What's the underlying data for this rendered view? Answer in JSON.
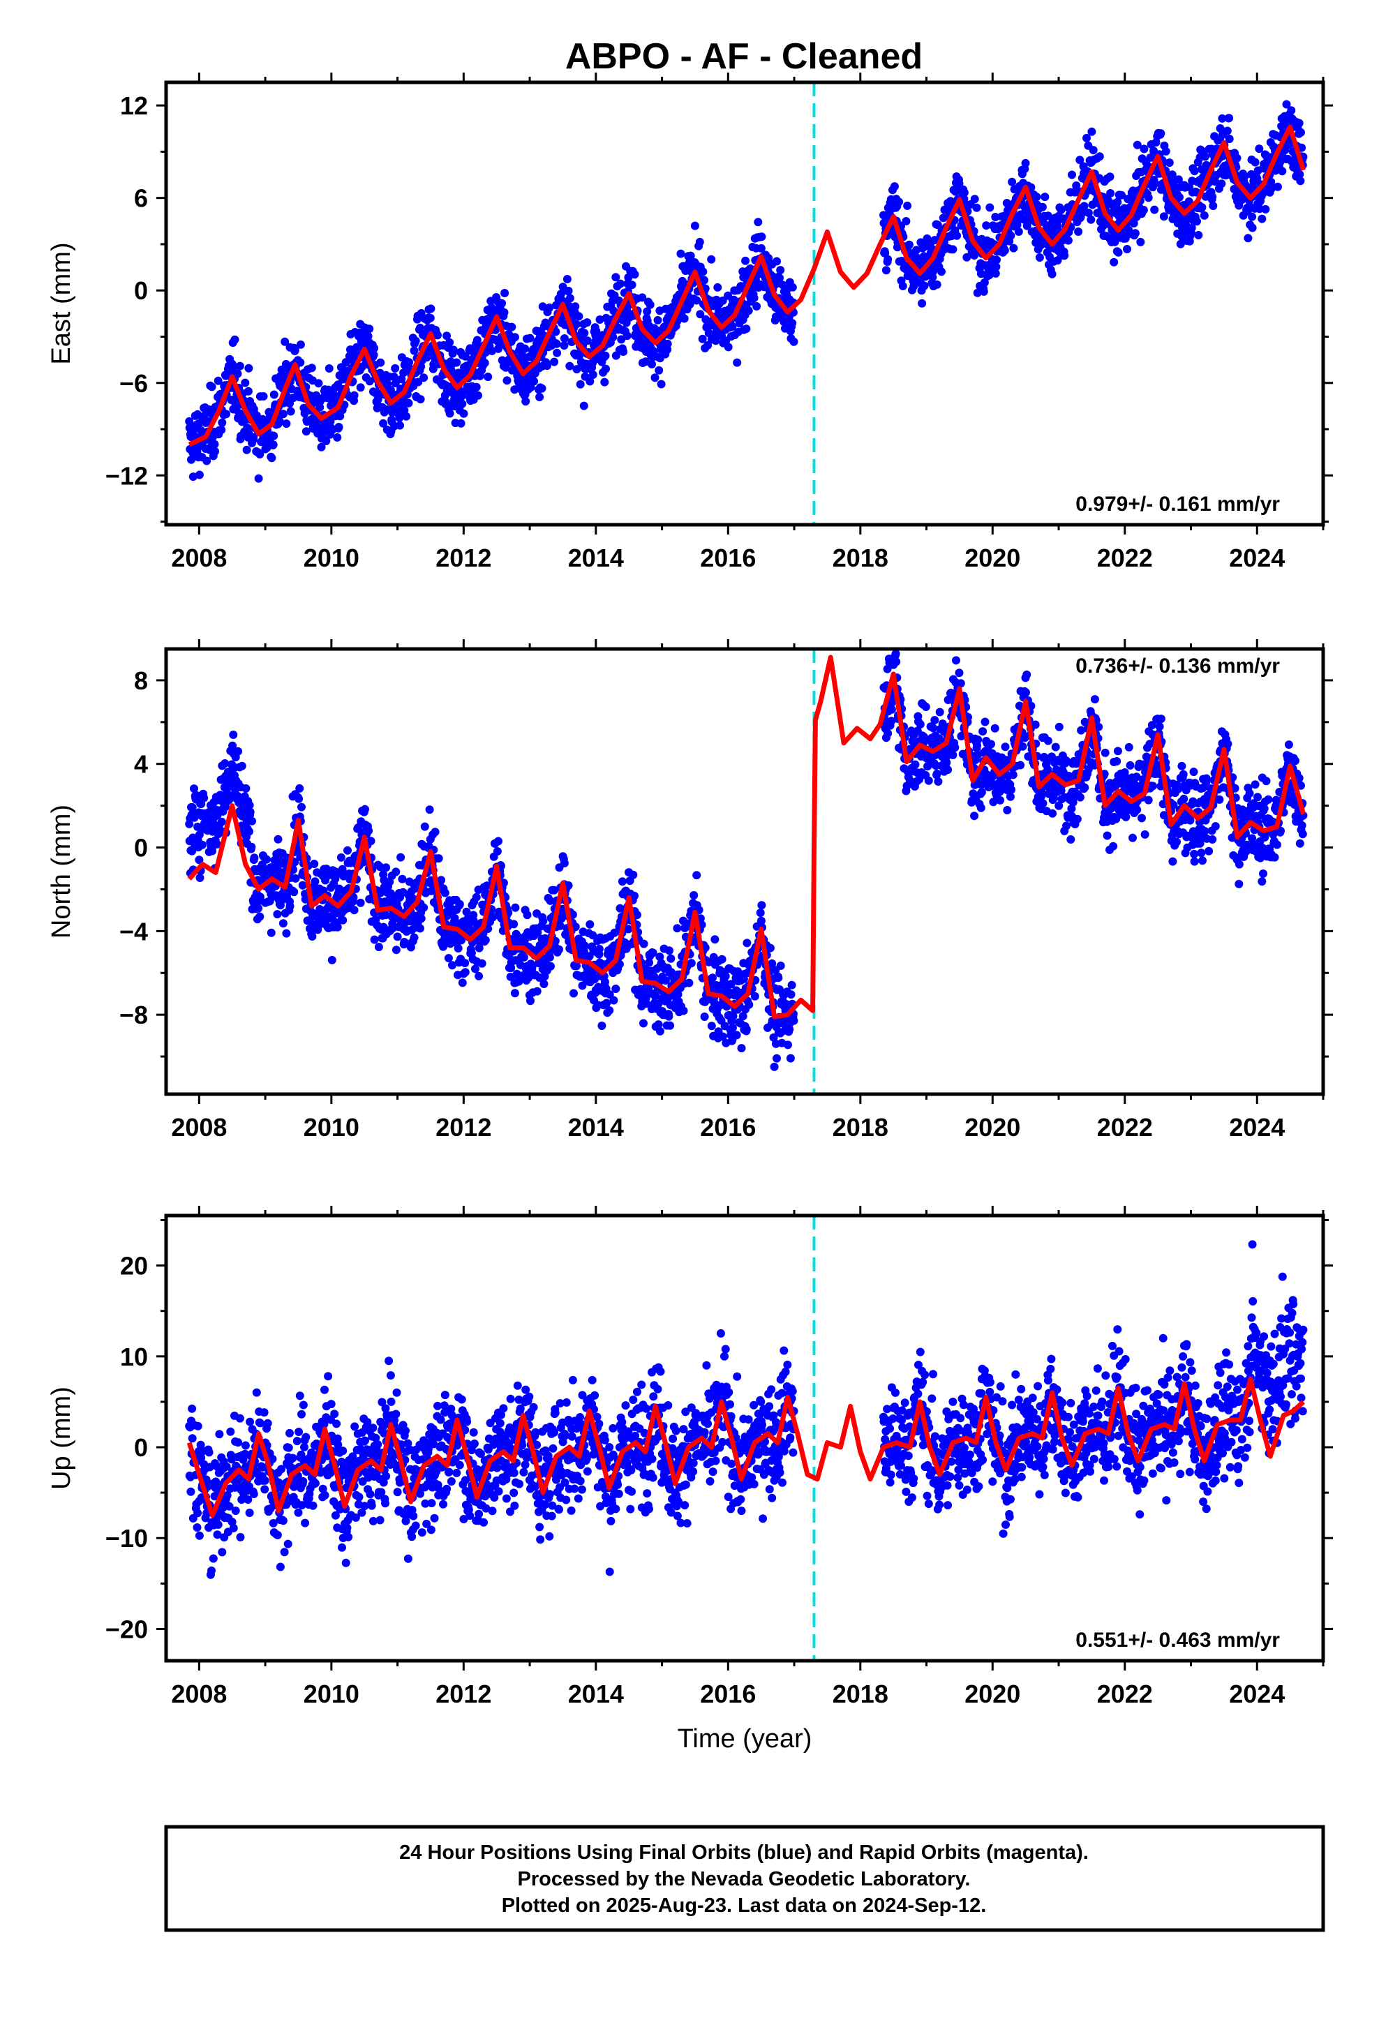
{
  "title": "ABPO  - AF - Cleaned",
  "caption": {
    "line1": "24 Hour Positions Using Final Orbits (blue) and Rapid Orbits (magenta).",
    "line2": "Processed by the Nevada Geodetic Laboratory.",
    "line3": "Plotted on 2025-Aug-23. Last data on 2024-Sep-12."
  },
  "colors": {
    "data": "#0000ff",
    "model": "#ff0000",
    "event": "#00e0e0",
    "frame": "#000000"
  },
  "chart_data": [
    {
      "type": "scatter",
      "ylabel": "East (mm)",
      "xlabel": "",
      "xlim": [
        2007.5,
        2025.0
      ],
      "ylim": [
        -15.2,
        13.5
      ],
      "xticks": [
        2008,
        2010,
        2012,
        2014,
        2016,
        2018,
        2020,
        2022,
        2024
      ],
      "yticks": [
        -12,
        -6,
        0,
        6,
        12
      ],
      "rate_text": "0.979+/- 0.161 mm/yr",
      "rate_position": "bottom-right",
      "event_lines": [
        2017.3
      ],
      "data_span": [
        2007.85,
        2024.7
      ],
      "data_gap": [
        2017.0,
        2018.35
      ],
      "model_curve": {
        "x": [
          2007.85,
          2008.1,
          2008.3,
          2008.5,
          2008.7,
          2008.9,
          2009.1,
          2009.3,
          2009.45,
          2009.65,
          2009.85,
          2010.1,
          2010.3,
          2010.5,
          2010.7,
          2010.9,
          2011.1,
          2011.3,
          2011.5,
          2011.7,
          2011.9,
          2012.1,
          2012.3,
          2012.5,
          2012.7,
          2012.9,
          2013.1,
          2013.3,
          2013.5,
          2013.7,
          2013.9,
          2014.1,
          2014.3,
          2014.5,
          2014.7,
          2014.9,
          2015.1,
          2015.3,
          2015.5,
          2015.7,
          2015.9,
          2016.1,
          2016.3,
          2016.5,
          2016.7,
          2016.9,
          2017.1,
          2017.3,
          2017.5,
          2017.7,
          2017.9,
          2018.1,
          2018.3,
          2018.5,
          2018.7,
          2018.9,
          2019.1,
          2019.3,
          2019.5,
          2019.7,
          2019.9,
          2020.1,
          2020.3,
          2020.5,
          2020.7,
          2020.9,
          2021.1,
          2021.3,
          2021.5,
          2021.7,
          2021.9,
          2022.1,
          2022.3,
          2022.5,
          2022.7,
          2022.9,
          2023.1,
          2023.3,
          2023.5,
          2023.7,
          2023.9,
          2024.1,
          2024.3,
          2024.5,
          2024.7
        ],
        "y": [
          -10.0,
          -9.5,
          -7.8,
          -5.6,
          -7.8,
          -9.3,
          -8.7,
          -6.4,
          -4.8,
          -7.4,
          -8.3,
          -7.6,
          -5.5,
          -3.8,
          -5.9,
          -7.3,
          -6.6,
          -4.6,
          -2.8,
          -5.1,
          -6.3,
          -5.5,
          -3.6,
          -1.7,
          -4.0,
          -5.4,
          -4.6,
          -2.7,
          -0.9,
          -3.3,
          -4.3,
          -3.6,
          -1.8,
          -0.2,
          -2.5,
          -3.4,
          -2.6,
          -0.7,
          1.2,
          -1.3,
          -2.4,
          -1.6,
          0.3,
          2.2,
          -0.3,
          -1.4,
          -0.6,
          1.4,
          3.8,
          1.2,
          0.2,
          1.1,
          3.0,
          4.8,
          2.1,
          1.1,
          2.1,
          4.1,
          5.9,
          3.2,
          2.1,
          3.0,
          5.0,
          6.7,
          4.1,
          3.0,
          4.0,
          5.9,
          7.7,
          5.0,
          3.9,
          4.9,
          6.9,
          8.7,
          6.0,
          5.0,
          5.8,
          7.8,
          9.6,
          7.0,
          6.0,
          6.9,
          8.9,
          10.6,
          7.8
        ]
      }
    },
    {
      "type": "scatter",
      "ylabel": "North (mm)",
      "xlabel": "",
      "xlim": [
        2007.5,
        2025.0
      ],
      "ylim": [
        -11.8,
        9.5
      ],
      "xticks": [
        2008,
        2010,
        2012,
        2014,
        2016,
        2018,
        2020,
        2022,
        2024
      ],
      "yticks": [
        -8,
        -4,
        0,
        4,
        8
      ],
      "rate_text": "0.736+/- 0.136 mm/yr",
      "rate_position": "top-right",
      "event_lines": [
        2017.3
      ],
      "data_span": [
        2007.85,
        2024.7
      ],
      "data_gap": [
        2017.0,
        2018.35
      ],
      "model_curve": {
        "x": [
          2007.85,
          2008.05,
          2008.25,
          2008.5,
          2008.7,
          2008.9,
          2009.1,
          2009.3,
          2009.5,
          2009.7,
          2009.9,
          2010.1,
          2010.3,
          2010.5,
          2010.7,
          2010.9,
          2011.1,
          2011.3,
          2011.5,
          2011.7,
          2011.9,
          2012.1,
          2012.3,
          2012.5,
          2012.7,
          2012.9,
          2013.1,
          2013.3,
          2013.5,
          2013.7,
          2013.9,
          2014.1,
          2014.3,
          2014.5,
          2014.7,
          2014.9,
          2015.1,
          2015.3,
          2015.5,
          2015.7,
          2015.9,
          2016.1,
          2016.3,
          2016.5,
          2016.7,
          2016.9,
          2017.1,
          2017.28,
          2017.3,
          2017.32,
          2017.4,
          2017.55,
          2017.75,
          2017.95,
          2018.15,
          2018.3,
          2018.5,
          2018.7,
          2018.9,
          2019.1,
          2019.3,
          2019.5,
          2019.7,
          2019.9,
          2020.1,
          2020.3,
          2020.5,
          2020.7,
          2020.9,
          2021.1,
          2021.3,
          2021.5,
          2021.7,
          2021.9,
          2022.1,
          2022.3,
          2022.5,
          2022.7,
          2022.9,
          2023.1,
          2023.3,
          2023.5,
          2023.7,
          2023.9,
          2024.1,
          2024.3,
          2024.5,
          2024.7
        ],
        "y": [
          -1.5,
          -0.8,
          -1.2,
          2.0,
          -0.8,
          -2.0,
          -1.5,
          -1.9,
          1.3,
          -2.8,
          -2.3,
          -2.8,
          -2.1,
          0.5,
          -3.0,
          -2.9,
          -3.3,
          -2.6,
          -0.2,
          -3.8,
          -3.9,
          -4.4,
          -3.8,
          -0.9,
          -4.8,
          -4.8,
          -5.3,
          -4.7,
          -1.7,
          -5.4,
          -5.5,
          -6.0,
          -5.4,
          -2.4,
          -6.4,
          -6.5,
          -6.9,
          -6.3,
          -3.1,
          -7.0,
          -7.1,
          -7.6,
          -7.0,
          -3.9,
          -8.1,
          -8.0,
          -7.3,
          -7.8,
          0.0,
          6.1,
          7.0,
          9.1,
          5.0,
          5.7,
          5.2,
          5.9,
          8.3,
          4.1,
          4.9,
          4.6,
          5.0,
          7.6,
          3.2,
          4.3,
          3.5,
          4.0,
          7.0,
          2.9,
          3.5,
          3.0,
          3.2,
          6.2,
          2.0,
          2.7,
          2.2,
          2.6,
          5.4,
          1.1,
          2.0,
          1.4,
          1.9,
          4.7,
          0.5,
          1.2,
          0.8,
          1.0,
          3.9,
          1.6
        ]
      }
    },
    {
      "type": "scatter",
      "ylabel": "Up (mm)",
      "xlabel": "Time (year)",
      "xlim": [
        2007.5,
        2025.0
      ],
      "ylim": [
        -23.5,
        25.5
      ],
      "xticks": [
        2008,
        2010,
        2012,
        2014,
        2016,
        2018,
        2020,
        2022,
        2024
      ],
      "yticks": [
        -20,
        -10,
        0,
        10,
        20
      ],
      "rate_text": "0.551+/- 0.463 mm/yr",
      "rate_position": "bottom-right",
      "event_lines": [
        2017.3
      ],
      "data_span": [
        2007.85,
        2024.7
      ],
      "data_gap": [
        2017.0,
        2018.35
      ],
      "model_curve": {
        "x": [
          2007.85,
          2008.0,
          2008.2,
          2008.4,
          2008.6,
          2008.75,
          2008.9,
          2009.05,
          2009.2,
          2009.4,
          2009.6,
          2009.75,
          2009.9,
          2010.05,
          2010.2,
          2010.4,
          2010.6,
          2010.75,
          2010.9,
          2011.05,
          2011.2,
          2011.4,
          2011.6,
          2011.75,
          2011.9,
          2012.05,
          2012.2,
          2012.4,
          2012.6,
          2012.75,
          2012.9,
          2013.05,
          2013.2,
          2013.4,
          2013.6,
          2013.75,
          2013.9,
          2014.05,
          2014.2,
          2014.4,
          2014.6,
          2014.75,
          2014.9,
          2015.05,
          2015.2,
          2015.4,
          2015.6,
          2015.75,
          2015.9,
          2016.05,
          2016.2,
          2016.4,
          2016.6,
          2016.75,
          2016.9,
          2017.05,
          2017.2,
          2017.35,
          2017.5,
          2017.7,
          2017.85,
          2018.0,
          2018.15,
          2018.35,
          2018.55,
          2018.75,
          2018.9,
          2019.05,
          2019.2,
          2019.4,
          2019.6,
          2019.75,
          2019.9,
          2020.05,
          2020.2,
          2020.4,
          2020.6,
          2020.75,
          2020.9,
          2021.05,
          2021.2,
          2021.4,
          2021.6,
          2021.75,
          2021.9,
          2022.05,
          2022.2,
          2022.4,
          2022.6,
          2022.75,
          2022.9,
          2023.05,
          2023.2,
          2023.4,
          2023.6,
          2023.75,
          2023.9,
          2024.05,
          2024.2,
          2024.4,
          2024.55,
          2024.7
        ],
        "y": [
          0.5,
          -3.0,
          -7.5,
          -4.0,
          -2.5,
          -3.5,
          1.5,
          -2.0,
          -7.0,
          -3.0,
          -2.0,
          -3.0,
          2.0,
          -2.0,
          -6.5,
          -2.5,
          -1.5,
          -2.5,
          2.5,
          -1.5,
          -6.0,
          -2.0,
          -1.0,
          -2.0,
          3.0,
          -1.0,
          -5.5,
          -1.5,
          -0.5,
          -1.5,
          3.5,
          -0.5,
          -5.0,
          -1.0,
          0.0,
          -1.0,
          4.0,
          0.0,
          -4.5,
          -0.5,
          0.5,
          -0.5,
          4.5,
          0.5,
          -4.0,
          0.0,
          1.0,
          0.0,
          5.0,
          1.0,
          -3.5,
          0.5,
          1.5,
          0.5,
          5.5,
          1.5,
          -3.0,
          -3.5,
          0.5,
          0.0,
          4.5,
          -0.5,
          -3.5,
          0.0,
          0.5,
          0.0,
          5.0,
          0.0,
          -3.0,
          0.5,
          1.0,
          0.5,
          5.5,
          0.5,
          -2.5,
          1.0,
          1.5,
          1.0,
          6.0,
          1.0,
          -2.0,
          1.5,
          2.0,
          1.5,
          6.5,
          1.5,
          -1.5,
          2.0,
          2.5,
          2.0,
          7.0,
          2.0,
          -1.5,
          2.5,
          3.0,
          3.0,
          7.5,
          3.0,
          -1.0,
          3.5,
          4.0,
          5.0
        ]
      }
    }
  ]
}
